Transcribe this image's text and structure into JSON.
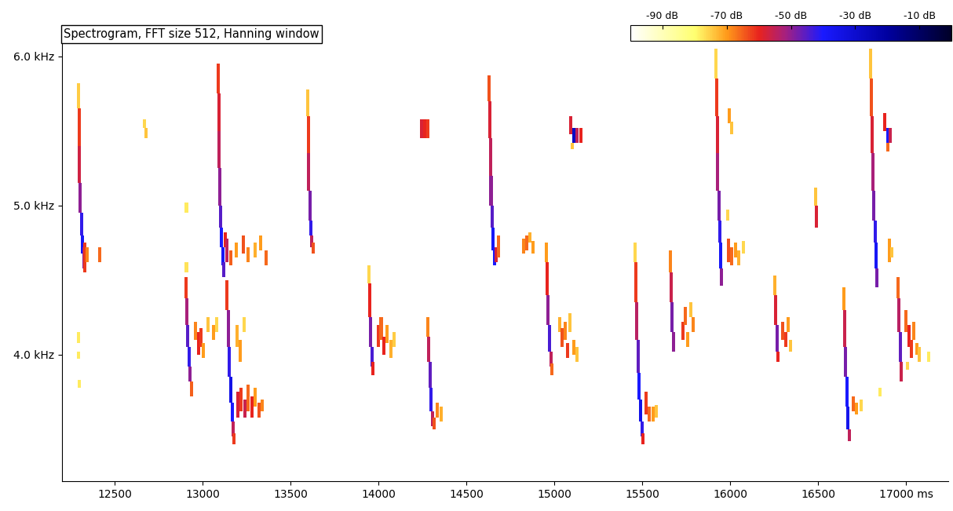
{
  "chart_data": {
    "type": "spectrogram",
    "title": "Spectrogram, FFT size 512, Hanning window",
    "xlim": [
      12200,
      17240
    ],
    "ylim": [
      3.15,
      6.1
    ],
    "xticks": [
      12500,
      13000,
      13500,
      14000,
      14500,
      15000,
      15500,
      16000,
      16500,
      {
        "value": 17000,
        "label": "17000 ms"
      }
    ],
    "yticks": [
      {
        "value": 4.0,
        "label": "4.0 kHz"
      },
      {
        "value": 5.0,
        "label": "5.0 kHz"
      },
      {
        "value": 6.0,
        "label": "6.0 kHz"
      }
    ],
    "grid": false,
    "cell_width": 18,
    "colorbar": {
      "range": [
        -100,
        0
      ],
      "ticks": [
        {
          "value": -90,
          "label": "-90 dB"
        },
        {
          "value": -70,
          "label": "-70 dB"
        },
        {
          "value": -50,
          "label": "-50 dB"
        },
        {
          "value": -30,
          "label": "-30 dB"
        },
        {
          "value": -10,
          "label": "-10 dB"
        }
      ]
    },
    "cells": [
      [
        12295,
        5.65,
        5.82,
        -75
      ],
      [
        12297,
        5.4,
        5.65,
        -62
      ],
      [
        12300,
        5.15,
        5.4,
        -57
      ],
      [
        12305,
        4.95,
        5.15,
        -50
      ],
      [
        12312,
        4.8,
        4.95,
        -42
      ],
      [
        12318,
        4.68,
        4.8,
        -38
      ],
      [
        12325,
        4.58,
        4.72,
        -50
      ],
      [
        12332,
        4.55,
        4.75,
        -62
      ],
      [
        12342,
        4.62,
        4.72,
        -68
      ],
      [
        12416,
        4.62,
        4.72,
        -66
      ],
      [
        12668,
        5.52,
        5.58,
        -76
      ],
      [
        12680,
        5.45,
        5.52,
        -74
      ],
      [
        12292,
        4.08,
        4.15,
        -78
      ],
      [
        12292,
        3.97,
        4.02,
        -78
      ],
      [
        12300,
        3.78,
        3.83,
        -78
      ],
      [
        12908,
        4.95,
        5.02,
        -78
      ],
      [
        12908,
        4.55,
        4.62,
        -77
      ],
      [
        12905,
        4.38,
        4.52,
        -62
      ],
      [
        12910,
        4.2,
        4.38,
        -52
      ],
      [
        12915,
        4.05,
        4.2,
        -45
      ],
      [
        12922,
        3.92,
        4.05,
        -42
      ],
      [
        12928,
        3.82,
        3.92,
        -50
      ],
      [
        12935,
        3.72,
        3.82,
        -65
      ],
      [
        12960,
        4.1,
        4.22,
        -68
      ],
      [
        12975,
        4.0,
        4.15,
        -60
      ],
      [
        12990,
        4.05,
        4.18,
        -62
      ],
      [
        13005,
        3.98,
        4.08,
        -70
      ],
      [
        13030,
        4.15,
        4.25,
        -74
      ],
      [
        13060,
        4.1,
        4.2,
        -70
      ],
      [
        13080,
        4.15,
        4.25,
        -76
      ],
      [
        13090,
        5.75,
        5.95,
        -62
      ],
      [
        13092,
        5.5,
        5.75,
        -58
      ],
      [
        13095,
        5.25,
        5.5,
        -55
      ],
      [
        13098,
        5.0,
        5.25,
        -50
      ],
      [
        13102,
        4.85,
        5.0,
        -45
      ],
      [
        13108,
        4.72,
        4.85,
        -40
      ],
      [
        13115,
        4.6,
        4.72,
        -38
      ],
      [
        13122,
        4.52,
        4.62,
        -45
      ],
      [
        13130,
        4.72,
        4.82,
        -60
      ],
      [
        13140,
        4.62,
        4.78,
        -55
      ],
      [
        13160,
        4.6,
        4.7,
        -65
      ],
      [
        13190,
        4.65,
        4.75,
        -70
      ],
      [
        13230,
        4.68,
        4.8,
        -64
      ],
      [
        13260,
        4.62,
        4.72,
        -68
      ],
      [
        13300,
        4.65,
        4.75,
        -72
      ],
      [
        13330,
        4.7,
        4.8,
        -70
      ],
      [
        13360,
        4.6,
        4.7,
        -66
      ],
      [
        13140,
        4.3,
        4.5,
        -62
      ],
      [
        13145,
        4.05,
        4.3,
        -50
      ],
      [
        13152,
        3.85,
        4.05,
        -42
      ],
      [
        13160,
        3.68,
        3.85,
        -35
      ],
      [
        13168,
        3.55,
        3.68,
        -40
      ],
      [
        13175,
        3.45,
        3.55,
        -55
      ],
      [
        13180,
        3.4,
        3.47,
        -62
      ],
      [
        13200,
        3.58,
        3.75,
        -58
      ],
      [
        13220,
        3.62,
        3.78,
        -62
      ],
      [
        13240,
        3.58,
        3.7,
        -56
      ],
      [
        13260,
        3.62,
        3.8,
        -66
      ],
      [
        13280,
        3.58,
        3.72,
        -60
      ],
      [
        13300,
        3.65,
        3.78,
        -70
      ],
      [
        13320,
        3.58,
        3.68,
        -64
      ],
      [
        13340,
        3.62,
        3.7,
        -68
      ],
      [
        13195,
        4.05,
        4.2,
        -72
      ],
      [
        13215,
        3.95,
        4.1,
        -70
      ],
      [
        13235,
        4.15,
        4.25,
        -76
      ],
      [
        13598,
        5.6,
        5.78,
        -74
      ],
      [
        13600,
        5.35,
        5.6,
        -62
      ],
      [
        13604,
        5.1,
        5.35,
        -55
      ],
      [
        13610,
        4.9,
        5.1,
        -48
      ],
      [
        13616,
        4.8,
        4.9,
        -42
      ],
      [
        13622,
        4.72,
        4.8,
        -55
      ],
      [
        13628,
        4.68,
        4.75,
        -64
      ],
      [
        13945,
        4.48,
        4.6,
        -76
      ],
      [
        13950,
        4.25,
        4.48,
        -60
      ],
      [
        13955,
        4.05,
        4.25,
        -48
      ],
      [
        13962,
        3.92,
        4.05,
        -44
      ],
      [
        13970,
        3.86,
        3.95,
        -60
      ],
      [
        14000,
        4.05,
        4.2,
        -62
      ],
      [
        14015,
        4.1,
        4.25,
        -66
      ],
      [
        14030,
        4.0,
        4.12,
        -60
      ],
      [
        14050,
        4.08,
        4.2,
        -70
      ],
      [
        14070,
        3.98,
        4.1,
        -72
      ],
      [
        14090,
        4.05,
        4.15,
        -75
      ],
      [
        14245,
        5.45,
        5.58,
        -58
      ],
      [
        14262,
        5.45,
        5.58,
        -60
      ],
      [
        14280,
        5.45,
        5.58,
        -62
      ],
      [
        14280,
        4.12,
        4.25,
        -68
      ],
      [
        14285,
        3.95,
        4.12,
        -55
      ],
      [
        14292,
        3.78,
        3.95,
        -46
      ],
      [
        14300,
        3.62,
        3.78,
        -42
      ],
      [
        14308,
        3.52,
        3.62,
        -55
      ],
      [
        14318,
        3.5,
        3.58,
        -64
      ],
      [
        14335,
        3.58,
        3.68,
        -68
      ],
      [
        14355,
        3.55,
        3.65,
        -72
      ],
      [
        14630,
        5.7,
        5.87,
        -64
      ],
      [
        14632,
        5.45,
        5.7,
        -58
      ],
      [
        14636,
        5.2,
        5.45,
        -55
      ],
      [
        14640,
        5.0,
        5.2,
        -50
      ],
      [
        14645,
        4.85,
        5.0,
        -45
      ],
      [
        14652,
        4.7,
        4.85,
        -38
      ],
      [
        14660,
        4.6,
        4.72,
        -40
      ],
      [
        14670,
        4.62,
        4.72,
        -58
      ],
      [
        14682,
        4.65,
        4.8,
        -66
      ],
      [
        14825,
        4.68,
        4.78,
        -68
      ],
      [
        14842,
        4.7,
        4.8,
        -66
      ],
      [
        14860,
        4.75,
        4.82,
        -72
      ],
      [
        14878,
        4.68,
        4.76,
        -70
      ],
      [
        14955,
        4.62,
        4.75,
        -70
      ],
      [
        14960,
        4.4,
        4.62,
        -60
      ],
      [
        14965,
        4.2,
        4.4,
        -50
      ],
      [
        14972,
        4.02,
        4.2,
        -44
      ],
      [
        14980,
        3.92,
        4.02,
        -55
      ],
      [
        14988,
        3.86,
        3.94,
        -66
      ],
      [
        15030,
        4.15,
        4.25,
        -72
      ],
      [
        15045,
        4.05,
        4.18,
        -64
      ],
      [
        15060,
        4.1,
        4.22,
        -68
      ],
      [
        15075,
        3.98,
        4.08,
        -62
      ],
      [
        15090,
        4.15,
        4.28,
        -74
      ],
      [
        15110,
        4.0,
        4.1,
        -70
      ],
      [
        15130,
        3.95,
        4.05,
        -74
      ],
      [
        15095,
        5.48,
        5.6,
        -58
      ],
      [
        15110,
        5.42,
        5.52,
        -28
      ],
      [
        15130,
        5.42,
        5.52,
        -55
      ],
      [
        15150,
        5.42,
        5.52,
        -60
      ],
      [
        15100,
        5.38,
        5.42,
        -74
      ],
      [
        15460,
        4.62,
        4.75,
        -76
      ],
      [
        15465,
        4.35,
        4.62,
        -62
      ],
      [
        15470,
        4.1,
        4.35,
        -54
      ],
      [
        15476,
        3.88,
        4.1,
        -46
      ],
      [
        15482,
        3.7,
        3.88,
        -40
      ],
      [
        15490,
        3.55,
        3.7,
        -35
      ],
      [
        15498,
        3.45,
        3.55,
        -42
      ],
      [
        15505,
        3.4,
        3.47,
        -60
      ],
      [
        15520,
        3.6,
        3.75,
        -62
      ],
      [
        15540,
        3.55,
        3.65,
        -66
      ],
      [
        15560,
        3.55,
        3.65,
        -70
      ],
      [
        15580,
        3.58,
        3.66,
        -74
      ],
      [
        15662,
        4.55,
        4.7,
        -68
      ],
      [
        15665,
        4.35,
        4.55,
        -56
      ],
      [
        15670,
        4.15,
        4.35,
        -48
      ],
      [
        15676,
        4.02,
        4.15,
        -50
      ],
      [
        15730,
        4.1,
        4.22,
        -62
      ],
      [
        15745,
        4.2,
        4.32,
        -66
      ],
      [
        15760,
        4.05,
        4.15,
        -70
      ],
      [
        15775,
        4.25,
        4.35,
        -74
      ],
      [
        15790,
        4.15,
        4.25,
        -68
      ],
      [
        15920,
        5.85,
        6.05,
        -76
      ],
      [
        15922,
        5.6,
        5.85,
        -62
      ],
      [
        15926,
        5.35,
        5.6,
        -58
      ],
      [
        15930,
        5.1,
        5.35,
        -52
      ],
      [
        15935,
        4.9,
        5.1,
        -48
      ],
      [
        15940,
        4.75,
        4.9,
        -42
      ],
      [
        15946,
        4.58,
        4.75,
        -38
      ],
      [
        15952,
        4.46,
        4.58,
        -50
      ],
      [
        15995,
        5.55,
        5.65,
        -70
      ],
      [
        16010,
        5.48,
        5.56,
        -74
      ],
      [
        15985,
        4.9,
        4.97,
        -76
      ],
      [
        15990,
        4.62,
        4.78,
        -64
      ],
      [
        16010,
        4.6,
        4.72,
        -66
      ],
      [
        16030,
        4.65,
        4.75,
        -70
      ],
      [
        16050,
        4.6,
        4.7,
        -72
      ],
      [
        16075,
        4.68,
        4.76,
        -76
      ],
      [
        16255,
        4.4,
        4.53,
        -72
      ],
      [
        16260,
        4.2,
        4.4,
        -58
      ],
      [
        16266,
        4.02,
        4.2,
        -48
      ],
      [
        16272,
        3.95,
        4.02,
        -60
      ],
      [
        16300,
        4.1,
        4.22,
        -64
      ],
      [
        16315,
        4.05,
        4.15,
        -62
      ],
      [
        16330,
        4.15,
        4.25,
        -70
      ],
      [
        16345,
        4.02,
        4.1,
        -74
      ],
      [
        16488,
        5.0,
        5.12,
        -74
      ],
      [
        16492,
        4.85,
        5.0,
        -58
      ],
      [
        16645,
        4.3,
        4.45,
        -70
      ],
      [
        16650,
        4.05,
        4.3,
        -56
      ],
      [
        16656,
        3.85,
        4.05,
        -48
      ],
      [
        16663,
        3.65,
        3.85,
        -40
      ],
      [
        16670,
        3.5,
        3.65,
        -36
      ],
      [
        16678,
        3.42,
        3.5,
        -55
      ],
      [
        16700,
        3.62,
        3.72,
        -66
      ],
      [
        16720,
        3.6,
        3.68,
        -70
      ],
      [
        16745,
        3.62,
        3.7,
        -76
      ],
      [
        16800,
        5.85,
        6.05,
        -74
      ],
      [
        16803,
        5.6,
        5.85,
        -64
      ],
      [
        16807,
        5.35,
        5.6,
        -58
      ],
      [
        16812,
        5.1,
        5.35,
        -52
      ],
      [
        16818,
        4.9,
        5.1,
        -48
      ],
      [
        16824,
        4.75,
        4.9,
        -42
      ],
      [
        16830,
        4.58,
        4.75,
        -38
      ],
      [
        16836,
        4.45,
        4.58,
        -48
      ],
      [
        16880,
        5.5,
        5.62,
        -60
      ],
      [
        16895,
        5.42,
        5.52,
        -40
      ],
      [
        16912,
        5.42,
        5.52,
        -56
      ],
      [
        16895,
        5.36,
        5.42,
        -66
      ],
      [
        16905,
        4.62,
        4.78,
        -70
      ],
      [
        16920,
        4.65,
        4.72,
        -74
      ],
      [
        16850,
        3.72,
        3.78,
        -78
      ],
      [
        16955,
        4.38,
        4.52,
        -66
      ],
      [
        16960,
        4.15,
        4.38,
        -54
      ],
      [
        16966,
        3.95,
        4.15,
        -46
      ],
      [
        16972,
        3.82,
        3.95,
        -56
      ],
      [
        17000,
        4.15,
        4.3,
        -66
      ],
      [
        17015,
        4.05,
        4.2,
        -60
      ],
      [
        17030,
        3.98,
        4.1,
        -62
      ],
      [
        17045,
        4.1,
        4.22,
        -68
      ],
      [
        17060,
        4.0,
        4.08,
        -70
      ],
      [
        17075,
        3.95,
        4.05,
        -74
      ],
      [
        17010,
        3.9,
        3.95,
        -76
      ],
      [
        17130,
        3.95,
        4.02,
        -78
      ]
    ]
  }
}
